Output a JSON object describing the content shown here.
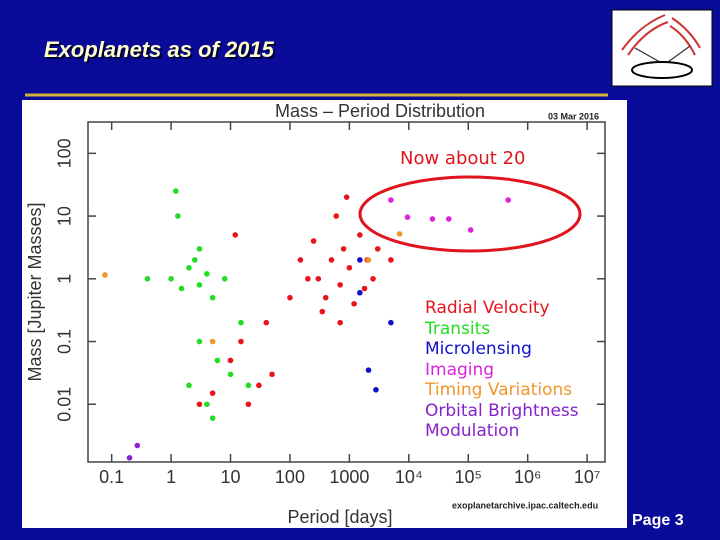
{
  "slide": {
    "title": "Exoplanets as of 2015",
    "page": "Page 3"
  },
  "chart_data": {
    "type": "scatter",
    "title": "Mass – Period Distribution",
    "date": "03 Mar 2016",
    "source": "exoplanetarchive.ipac.caltech.edu",
    "annotation": "Now about 20",
    "x_label": "Period [days]",
    "y_label": "Mass [Jupiter Masses]",
    "xscale": "log",
    "yscale": "log",
    "xlim": [
      0.04,
      20000000
    ],
    "ylim": [
      0.0012,
      316
    ],
    "xticks": [
      0.1,
      1,
      10,
      100,
      1000,
      {
        "value": 10000,
        "label": "10⁴"
      },
      {
        "value": 100000,
        "label": "10⁵"
      },
      {
        "value": 1000000,
        "label": "10⁶"
      },
      {
        "value": 10000000,
        "label": "10⁷"
      }
    ],
    "yticks": [
      0.01,
      0.1,
      1,
      10,
      100
    ],
    "series": [
      {
        "name": "Radial Velocity",
        "color": "#e8141c",
        "x": [
          300,
          500,
          800,
          1000,
          1500,
          2000,
          700,
          400,
          250,
          1200,
          3000,
          600,
          900,
          200,
          150,
          1800,
          350,
          2500,
          5000,
          100,
          50,
          30,
          20,
          10,
          5,
          3,
          15,
          40,
          12,
          700
        ],
        "y": [
          1,
          2,
          3,
          1.5,
          5,
          2,
          0.8,
          0.5,
          4,
          0.4,
          3,
          10,
          20,
          1,
          2,
          0.7,
          0.3,
          1,
          2,
          0.5,
          0.03,
          0.02,
          0.01,
          0.05,
          0.015,
          0.01,
          0.1,
          0.2,
          5,
          0.2
        ]
      },
      {
        "name": "Transits",
        "color": "#22dd22",
        "x": [
          1,
          2,
          3,
          4,
          2.5,
          1.5,
          5,
          3,
          8,
          1.2,
          2,
          4,
          6,
          10,
          20,
          3,
          5,
          15,
          1.3,
          0.4
        ],
        "y": [
          1,
          1.5,
          0.8,
          1.2,
          2,
          0.7,
          0.5,
          3,
          1,
          25,
          0.02,
          0.01,
          0.05,
          0.03,
          0.02,
          0.1,
          0.006,
          0.2,
          10,
          1
        ]
      },
      {
        "name": "Microlensing",
        "color": "#1010cc",
        "x": [
          2100,
          2800,
          1500,
          1500,
          5000
        ],
        "y": [
          0.035,
          0.017,
          2,
          0.6,
          0.2
        ]
      },
      {
        "name": "Imaging",
        "color": "#dd22dd",
        "x": [
          5000,
          9500,
          25000,
          47000,
          110000,
          470000
        ],
        "y": [
          18,
          9.6,
          9,
          9,
          6,
          18
        ]
      },
      {
        "name": "Timing Variations",
        "color": "#f0962a",
        "x": [
          0.077,
          7000,
          2100,
          5
        ],
        "y": [
          1.15,
          5.2,
          2,
          0.1
        ]
      },
      {
        "name": "Orbital Brightness Modulation",
        "color": "#8822cc",
        "x": [
          0.2,
          0.27
        ],
        "y": [
          0.0014,
          0.0022
        ]
      }
    ]
  }
}
